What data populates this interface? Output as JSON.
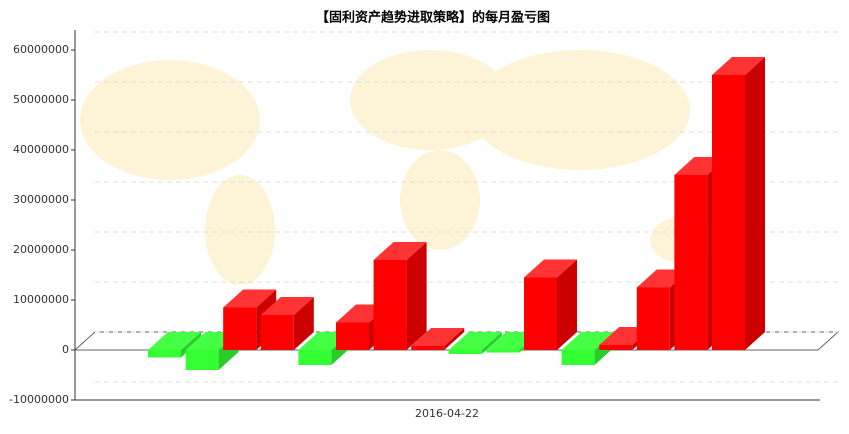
{
  "chart_data": {
    "type": "bar3d",
    "title": "【固利资产趋势进取策略】的每月盈亏图",
    "xlabel": "2016-04-22",
    "categories": [
      null,
      null,
      null,
      null,
      null,
      null,
      null,
      null,
      null,
      null,
      null,
      null,
      null,
      null,
      null,
      null
    ],
    "values": [
      -1500000,
      -4000000,
      8500000,
      7000000,
      -3000000,
      5500000,
      18000000,
      800000,
      -800000,
      -500000,
      14500000,
      -3000000,
      1000000,
      12500000,
      35000000,
      55000000
    ],
    "positive_color": "#ff0000",
    "negative_color": "#33ff33",
    "ylim": [
      -10000000,
      60000000
    ],
    "yticks": [
      -10000000,
      0,
      10000000,
      20000000,
      30000000,
      40000000,
      50000000,
      60000000
    ],
    "grid": true
  }
}
